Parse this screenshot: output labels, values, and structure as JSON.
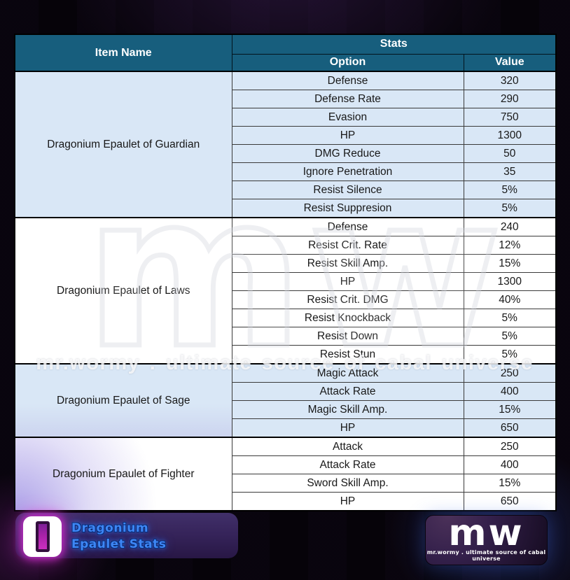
{
  "table": {
    "header": {
      "item_name": "Item Name",
      "stats": "Stats",
      "option": "Option",
      "value": "Value"
    },
    "items": [
      {
        "name": "Dragonium Epaulet of Guardian",
        "rows": [
          {
            "option": "Defense",
            "value": "320"
          },
          {
            "option": "Defense Rate",
            "value": "290"
          },
          {
            "option": "Evasion",
            "value": "750"
          },
          {
            "option": "HP",
            "value": "1300"
          },
          {
            "option": "DMG Reduce",
            "value": "50"
          },
          {
            "option": "Ignore Penetration",
            "value": "35"
          },
          {
            "option": "Resist Silence",
            "value": "5%"
          },
          {
            "option": "Resist Suppresion",
            "value": "5%"
          }
        ]
      },
      {
        "name": "Dragonium Epaulet of Laws",
        "rows": [
          {
            "option": "Defense",
            "value": "240"
          },
          {
            "option": "Resist Crit. Rate",
            "value": "12%"
          },
          {
            "option": "Resist Skill Amp.",
            "value": "15%"
          },
          {
            "option": "HP",
            "value": "1300"
          },
          {
            "option": "Resist Crit. DMG",
            "value": "40%"
          },
          {
            "option": "Resist Knockback",
            "value": "5%"
          },
          {
            "option": "Resist Down",
            "value": "5%"
          },
          {
            "option": "Resist Stun",
            "value": "5%"
          }
        ]
      },
      {
        "name": "Dragonium Epaulet of Sage",
        "rows": [
          {
            "option": "Magic Attack",
            "value": "250"
          },
          {
            "option": "Attack Rate",
            "value": "400"
          },
          {
            "option": "Magic Skill Amp.",
            "value": "15%"
          },
          {
            "option": "HP",
            "value": "650"
          }
        ]
      },
      {
        "name": "Dragonium Epaulet of Fighter",
        "rows": [
          {
            "option": "Attack",
            "value": "250"
          },
          {
            "option": "Attack Rate",
            "value": "400"
          },
          {
            "option": "Sword Skill Amp.",
            "value": "15%"
          },
          {
            "option": "HP",
            "value": "650"
          }
        ]
      }
    ]
  },
  "watermark": {
    "wordmark": "mw",
    "tagline": "mr.wormy . ultimate source of cabal universe"
  },
  "badge": {
    "line1": "Dragonium",
    "line2": "Epaulet Stats"
  },
  "logo": {
    "wordmark": "mw",
    "tagline": "mr.wormy . ultimate source of cabal universe"
  },
  "colors": {
    "header_teal": "#175E7D",
    "row_blue": "#D9E7F6",
    "row_white": "#FFFFFF",
    "badge_text_blue": "#3D86F5",
    "badge_bg_purple": "#352359",
    "icon_magenta": "#CB2FC0",
    "logo_bg_purple": "#34204B",
    "background_black": "#060309"
  }
}
